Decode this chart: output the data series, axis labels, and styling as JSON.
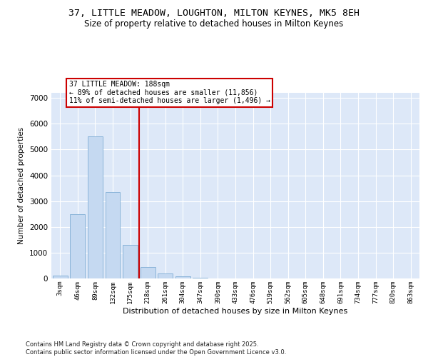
{
  "title": "37, LITTLE MEADOW, LOUGHTON, MILTON KEYNES, MK5 8EH",
  "subtitle": "Size of property relative to detached houses in Milton Keynes",
  "xlabel": "Distribution of detached houses by size in Milton Keynes",
  "ylabel": "Number of detached properties",
  "categories": [
    "3sqm",
    "46sqm",
    "89sqm",
    "132sqm",
    "175sqm",
    "218sqm",
    "261sqm",
    "304sqm",
    "347sqm",
    "390sqm",
    "433sqm",
    "476sqm",
    "519sqm",
    "562sqm",
    "605sqm",
    "648sqm",
    "691sqm",
    "734sqm",
    "777sqm",
    "820sqm",
    "863sqm"
  ],
  "values": [
    100,
    2500,
    5500,
    3350,
    1300,
    450,
    200,
    80,
    40,
    0,
    0,
    0,
    0,
    0,
    0,
    0,
    0,
    0,
    0,
    0,
    0
  ],
  "bar_color": "#c5d9f1",
  "bar_edge_color": "#8ab4d9",
  "vline_x_idx": 4,
  "vline_color": "#cc0000",
  "annotation_line1": "37 LITTLE MEADOW: 188sqm",
  "annotation_line2": "← 89% of detached houses are smaller (11,856)",
  "annotation_line3": "11% of semi-detached houses are larger (1,496) →",
  "annotation_box_color": "#cc0000",
  "ylim": [
    0,
    7200
  ],
  "yticks": [
    0,
    1000,
    2000,
    3000,
    4000,
    5000,
    6000,
    7000
  ],
  "background_color": "#dde8f8",
  "grid_color": "#ffffff",
  "footer": "Contains HM Land Registry data © Crown copyright and database right 2025.\nContains public sector information licensed under the Open Government Licence v3.0."
}
